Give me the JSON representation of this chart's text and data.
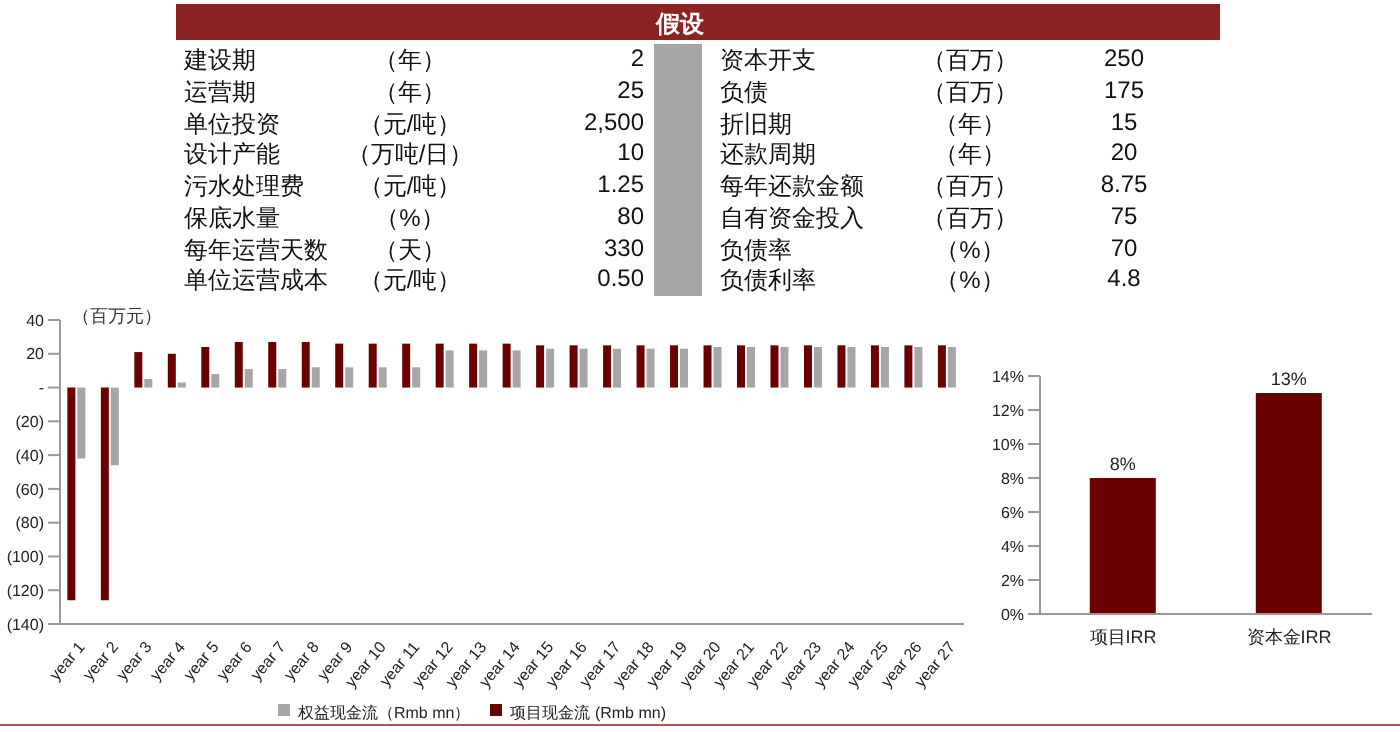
{
  "chart_data": [
    {
      "type": "other",
      "title": "假设",
      "annotations": [
        "建设期",
        "（年）",
        "2",
        "资本开支",
        "（百万）",
        "250",
        "运营期",
        "（年）",
        "25",
        "负债",
        "（百万）",
        "175",
        "单位投资",
        "（元/吨）",
        "2,500",
        "折旧期",
        "（年）",
        "15",
        "设计产能",
        "（万吨/日）",
        "10",
        "还款周期",
        "（年）",
        "20",
        "污水处理费",
        "（元/吨）",
        "1.25",
        "每年还款金额",
        "（百万）",
        "8.75",
        "保底水量",
        "（%）",
        "80",
        "自有资金投入",
        "（百万）",
        "75",
        "每年运营天数",
        "（天）",
        "330",
        "负债率",
        "（%）",
        "70",
        "单位运营成本",
        "（元/吨）",
        "0.50",
        "负债利率",
        "（%）",
        "4.8"
      ]
    },
    {
      "type": "bar",
      "ylabel": "（百万元）",
      "categories": [
        "year 1",
        "year 2",
        "year 3",
        "year 4",
        "year 5",
        "year 6",
        "year 7",
        "year 8",
        "year 9",
        "year 10",
        "year 11",
        "year 12",
        "year 13",
        "year 14",
        "year 15",
        "year 16",
        "year 17",
        "year 18",
        "year 19",
        "year 20",
        "year 21",
        "year 22",
        "year 23",
        "year 24",
        "year 25",
        "year 26",
        "year 27"
      ],
      "series": [
        {
          "name": "项目现金流 (Rmb mn)",
          "color": "#6b0000",
          "values": [
            -126,
            -126,
            21,
            20,
            24,
            27,
            27,
            27,
            26,
            26,
            26,
            26,
            26,
            26,
            25,
            25,
            25,
            25,
            25,
            25,
            25,
            25,
            25,
            25,
            25,
            25,
            25
          ]
        },
        {
          "name": "权益现金流（Rmb mn）",
          "color": "#a6a6a6",
          "values": [
            -42,
            -46,
            5,
            3,
            8,
            11,
            11,
            12,
            12,
            12,
            12,
            22,
            22,
            22,
            23,
            23,
            23,
            23,
            23,
            24,
            24,
            24,
            24,
            24,
            24,
            24,
            24
          ]
        }
      ],
      "ylim": [
        -140,
        40
      ],
      "yticks": [
        40,
        20,
        {
          "value": 0,
          "label": "-"
        },
        {
          "value": -20,
          "label": "(20)"
        },
        {
          "value": -40,
          "label": "(40)"
        },
        {
          "value": -60,
          "label": "(60)"
        },
        {
          "value": -80,
          "label": "(80)"
        },
        {
          "value": -100,
          "label": "(100)"
        },
        {
          "value": -120,
          "label": "(120)"
        },
        {
          "value": -140,
          "label": "(140)"
        }
      ],
      "grid": false,
      "legend": "bottom"
    },
    {
      "type": "bar",
      "categories": [
        "项目IRR",
        "资本金IRR"
      ],
      "values": [
        8,
        13
      ],
      "value_labels": [
        "8%",
        "13%"
      ],
      "color": "#6b0000",
      "ylim": [
        0,
        14
      ],
      "yticks": [
        {
          "value": 0,
          "label": "0%"
        },
        {
          "value": 2,
          "label": "2%"
        },
        {
          "value": 4,
          "label": "4%"
        },
        {
          "value": 6,
          "label": "6%"
        },
        {
          "value": 8,
          "label": "8%"
        },
        {
          "value": 10,
          "label": "10%"
        },
        {
          "value": 12,
          "label": "12%"
        },
        {
          "value": 14,
          "label": "14%"
        }
      ],
      "grid": false
    }
  ]
}
